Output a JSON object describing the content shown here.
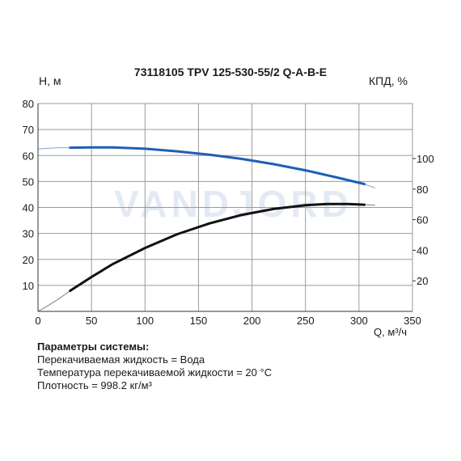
{
  "chart_data": {
    "type": "line",
    "title": "73118105 TPV 125-530-55/2 Q-A-B-E",
    "ylabel": "Н, м",
    "ylabel_right": "КПД, %",
    "xlabel": "Q, м³/ч",
    "xlim": [
      0,
      350
    ],
    "ylim": [
      0,
      80
    ],
    "ylim_right": [
      0,
      136
    ],
    "x_ticks": [
      "0",
      "50",
      "100",
      "150",
      "200",
      "250",
      "300",
      "350"
    ],
    "y_ticks": [
      "10",
      "20",
      "30",
      "40",
      "50",
      "60",
      "70",
      "80"
    ],
    "y_ticks_right": [
      "20",
      "40",
      "60",
      "80",
      "100"
    ],
    "grid": true,
    "watermark": "VANDJORD",
    "series": [
      {
        "axis": "left",
        "color": "#1f5fb4",
        "x": [
          0,
          10,
          20,
          30,
          50,
          70,
          100,
          130,
          160,
          190,
          220,
          250,
          280,
          300,
          305,
          315
        ],
        "values": [
          62.5,
          62.8,
          63,
          63,
          63.1,
          63.1,
          62.6,
          61.6,
          60.3,
          58.7,
          56.7,
          54.3,
          51.5,
          49.5,
          49,
          47.5
        ],
        "operating_range": [
          30,
          305
        ]
      },
      {
        "axis": "right",
        "color": "#111111",
        "x": [
          0,
          10,
          20,
          30,
          50,
          70,
          100,
          130,
          160,
          190,
          220,
          250,
          270,
          290,
          305,
          315
        ],
        "values": [
          0,
          4,
          8.5,
          13.5,
          22.5,
          31,
          41.5,
          50.5,
          57.5,
          63,
          67,
          69.5,
          70.2,
          70.2,
          69.8,
          69.5
        ],
        "operating_range": [
          30,
          305
        ]
      }
    ]
  },
  "params": {
    "heading": "Параметры системы:",
    "lines": [
      "Перекачиваемая жидкость = Вода",
      "Температура перекачиваемой жидкости = 20 °C",
      "Плотность = 998.2 кг/м³"
    ]
  }
}
